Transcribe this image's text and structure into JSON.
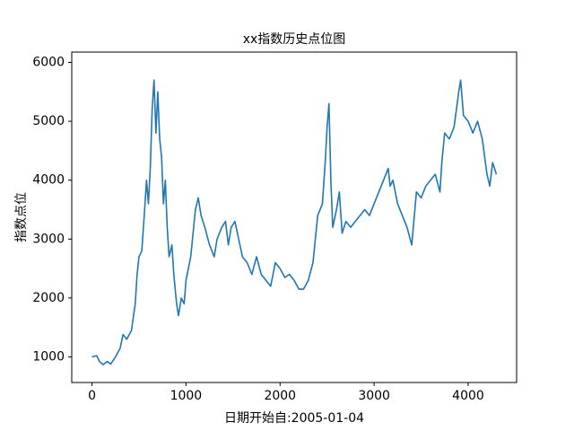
{
  "chart_data": {
    "type": "line",
    "title": "xx指数历史点位图",
    "xlabel": "日期开始自:2005-01-04",
    "ylabel": "指数点位",
    "color": "#1f77b4",
    "grid": false,
    "xlim": [
      -215,
      4515
    ],
    "ylim": [
      565,
      6175
    ],
    "xticks": [
      0,
      1000,
      2000,
      3000,
      4000
    ],
    "yticks": [
      1000,
      2000,
      3000,
      4000,
      5000,
      6000
    ],
    "x": [
      0,
      50,
      80,
      120,
      160,
      200,
      250,
      300,
      330,
      370,
      420,
      460,
      480,
      500,
      530,
      560,
      580,
      600,
      620,
      640,
      660,
      680,
      700,
      720,
      740,
      760,
      780,
      800,
      820,
      850,
      870,
      900,
      920,
      950,
      980,
      1000,
      1050,
      1100,
      1130,
      1160,
      1200,
      1250,
      1300,
      1330,
      1380,
      1420,
      1450,
      1480,
      1520,
      1560,
      1600,
      1650,
      1700,
      1750,
      1800,
      1850,
      1900,
      1950,
      2000,
      2050,
      2100,
      2150,
      2200,
      2250,
      2300,
      2350,
      2400,
      2450,
      2480,
      2500,
      2520,
      2540,
      2560,
      2600,
      2630,
      2660,
      2700,
      2750,
      2800,
      2850,
      2900,
      2950,
      3000,
      3050,
      3100,
      3150,
      3170,
      3200,
      3250,
      3300,
      3350,
      3400,
      3450,
      3500,
      3550,
      3600,
      3650,
      3700,
      3720,
      3750,
      3800,
      3850,
      3900,
      3920,
      3950,
      4000,
      4050,
      4100,
      4150,
      4200,
      4230,
      4260,
      4300
    ],
    "values": [
      1000,
      1020,
      920,
      870,
      920,
      880,
      1000,
      1150,
      1380,
      1300,
      1450,
      1900,
      2400,
      2700,
      2800,
      3500,
      4000,
      3600,
      4200,
      5200,
      5700,
      4800,
      5500,
      4700,
      4400,
      3600,
      4000,
      3200,
      2700,
      2900,
      2400,
      1900,
      1700,
      2000,
      1900,
      2300,
      2700,
      3500,
      3700,
      3400,
      3200,
      2900,
      2700,
      3000,
      3200,
      3300,
      2900,
      3200,
      3300,
      3000,
      2700,
      2600,
      2400,
      2700,
      2400,
      2300,
      2200,
      2600,
      2500,
      2350,
      2400,
      2300,
      2150,
      2150,
      2300,
      2600,
      3400,
      3600,
      4300,
      4900,
      5300,
      4000,
      3200,
      3500,
      3800,
      3100,
      3300,
      3200,
      3300,
      3400,
      3500,
      3400,
      3600,
      3800,
      4000,
      4200,
      3900,
      4000,
      3600,
      3400,
      3200,
      2900,
      3800,
      3700,
      3900,
      4000,
      4100,
      3800,
      4300,
      4800,
      4700,
      4900,
      5500,
      5700,
      5100,
      5000,
      4800,
      5000,
      4700,
      4100,
      3900,
      4300,
      4100
    ]
  }
}
